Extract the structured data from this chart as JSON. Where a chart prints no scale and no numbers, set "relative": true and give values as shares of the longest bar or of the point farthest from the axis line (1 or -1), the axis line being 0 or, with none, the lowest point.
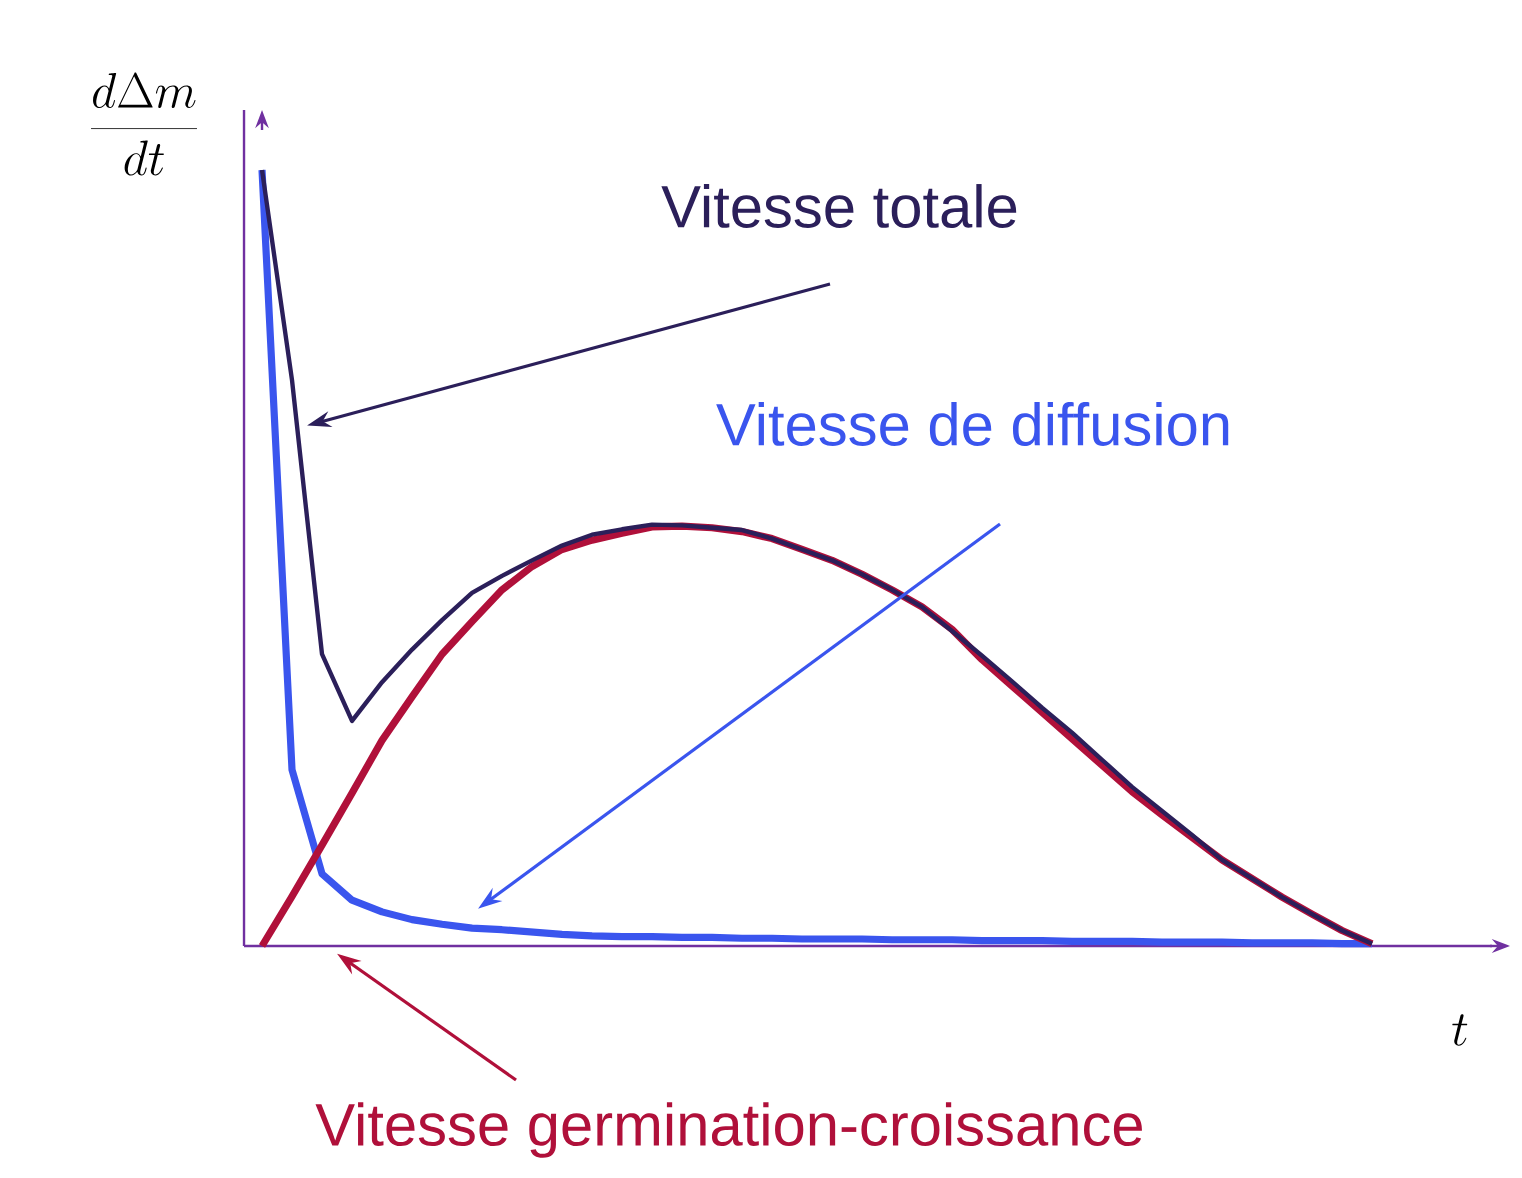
{
  "chart_data": {
    "type": "line",
    "relative": true,
    "ylabel": "\\frac{d\\Delta m}{dt}",
    "xlabel": "t",
    "categories": [
      null,
      null,
      null,
      null,
      null,
      null,
      null,
      null,
      null,
      null,
      null,
      null,
      null,
      null,
      null,
      null,
      null,
      null,
      null,
      null,
      null,
      null,
      null,
      null,
      null,
      null,
      null,
      null,
      null,
      null,
      null,
      null,
      null,
      null,
      null,
      null,
      null,
      null
    ],
    "series": [
      {
        "name": "Vitesse totale",
        "color": "#2b1f5a",
        "values": [
          1.0,
          0.729,
          0.376,
          0.29,
          0.34,
          0.382,
          0.42,
          0.455,
          0.477,
          0.497,
          0.516,
          0.53,
          0.537,
          0.543,
          0.542,
          0.539,
          0.536,
          0.525,
          0.511,
          0.497,
          0.479,
          0.459,
          0.437,
          0.406,
          0.374,
          0.341,
          0.307,
          0.275,
          0.24,
          0.205,
          0.174,
          0.143,
          0.111,
          0.087,
          0.063,
          0.041,
          0.02,
          0.003
        ]
      },
      {
        "name": "Vitesse de diffusion",
        "color": "#3a55ee",
        "values": [
          1.0,
          0.227,
          0.093,
          0.059,
          0.044,
          0.034,
          0.028,
          0.023,
          0.021,
          0.018,
          0.015,
          0.013,
          0.012,
          0.012,
          0.011,
          0.011,
          0.01,
          0.01,
          0.009,
          0.009,
          0.009,
          0.008,
          0.008,
          0.008,
          0.007,
          0.007,
          0.007,
          0.006,
          0.006,
          0.006,
          0.005,
          0.005,
          0.005,
          0.004,
          0.004,
          0.004,
          0.003,
          0.003
        ]
      },
      {
        "name": "Vitesse germination-croissance",
        "color": "#b0103a",
        "values": [
          0.0,
          0.064,
          0.13,
          0.197,
          0.265,
          0.321,
          0.376,
          0.418,
          0.459,
          0.489,
          0.511,
          0.523,
          0.532,
          0.54,
          0.541,
          0.539,
          0.534,
          0.525,
          0.511,
          0.497,
          0.479,
          0.459,
          0.437,
          0.408,
          0.369,
          0.335,
          0.301,
          0.267,
          0.233,
          0.199,
          0.169,
          0.14,
          0.111,
          0.087,
          0.063,
          0.041,
          0.02,
          0.003
        ]
      }
    ]
  }
}
